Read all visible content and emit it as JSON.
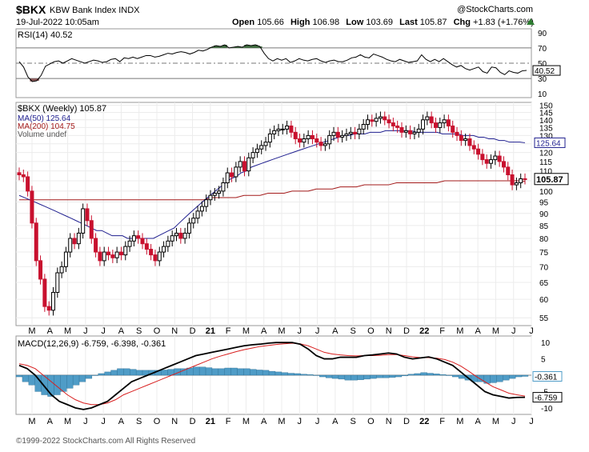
{
  "header": {
    "symbol": "$BKX",
    "name": "KBW Bank Index",
    "exchange": "INDX",
    "datetime": "19-Jul-2022 10:05am",
    "brand": "@StockCharts.com",
    "open_label": "Open",
    "open": "105.66",
    "high_label": "High",
    "high": "106.98",
    "low_label": "Low",
    "low": "103.69",
    "last_label": "Last",
    "last": "105.87",
    "chg_label": "Chg",
    "chg": "+1.83 (+1.76%)",
    "chg_color": "#2e7d32"
  },
  "footer": "©1999-2022 StockCharts.com All Rights Reserved",
  "x_axis_labels": [
    "M",
    "A",
    "M",
    "J",
    "J",
    "A",
    "S",
    "O",
    "N",
    "D",
    "21",
    "F",
    "M",
    "A",
    "M",
    "J",
    "J",
    "A",
    "S",
    "O",
    "N",
    "D",
    "22",
    "F",
    "M",
    "A",
    "M",
    "J",
    "J"
  ],
  "chart_data": [
    {
      "type": "line",
      "panel": "rsi",
      "legend": "RSI(14) 40.52",
      "ylim": [
        5,
        95
      ],
      "y_ticks": [
        10,
        30,
        50,
        70,
        90
      ],
      "reference_lines": [
        30,
        50,
        70
      ],
      "last_label": "40.52",
      "series": [
        {
          "values": [
            52,
            45,
            32,
            26,
            27,
            34,
            46,
            49,
            52,
            53,
            50,
            53,
            56,
            54,
            52,
            50,
            52,
            54,
            53,
            51,
            52,
            55,
            56,
            52,
            57,
            56,
            58,
            56,
            58,
            60,
            60,
            58,
            59,
            61,
            63,
            62,
            64,
            65,
            64,
            62,
            64,
            67,
            66,
            68,
            71,
            73,
            72,
            74,
            70,
            71,
            72,
            71,
            74,
            73,
            74,
            72,
            63,
            56,
            53,
            56,
            54,
            56,
            51,
            53,
            56,
            54,
            53,
            55,
            56,
            53,
            51,
            53,
            54,
            52,
            52,
            54,
            57,
            58,
            61,
            58,
            57,
            62,
            60,
            58,
            55,
            53,
            52,
            55,
            53,
            51,
            52,
            53,
            61,
            55,
            52,
            55,
            52,
            56,
            52,
            48,
            45,
            47,
            43,
            41,
            43,
            45,
            39,
            37,
            45,
            44,
            38,
            35,
            40,
            38,
            37,
            40,
            40.52
          ]
        }
      ],
      "colors": {
        "line": "#000000",
        "overbought_fill": "#3f6b3f",
        "oversold_fill": "#8b5a5a"
      }
    },
    {
      "type": "candlestick",
      "panel": "price",
      "legend": [
        "$BKX (Weekly) 105.87",
        "MA(50) 125.64",
        "MA(200) 104.75",
        "Volume undef"
      ],
      "scale": "log",
      "ylim": [
        53,
        152
      ],
      "y_ticks": [
        55,
        60,
        65,
        70,
        75,
        80,
        85,
        90,
        95,
        100,
        105,
        110,
        115,
        120,
        125,
        130,
        135,
        140,
        145,
        150
      ],
      "last_labels": {
        "ma50": "125.64",
        "price": "105.87"
      },
      "x_labels": [
        "M",
        "A",
        "M",
        "J",
        "J",
        "A",
        "S",
        "O",
        "N",
        "D",
        "21",
        "F",
        "M",
        "A",
        "M",
        "J",
        "J",
        "A",
        "S",
        "O",
        "N",
        "D",
        "22",
        "F",
        "M",
        "A",
        "M",
        "J",
        "J"
      ],
      "close": [
        108,
        107,
        100,
        86,
        72,
        66,
        58,
        57,
        62,
        68,
        70,
        75,
        80,
        78,
        82,
        92,
        87,
        80,
        75,
        72,
        75,
        74,
        73,
        75,
        74,
        77,
        79,
        81,
        80,
        78,
        76,
        74,
        72,
        75,
        77,
        79,
        81,
        82,
        80,
        82,
        86,
        88,
        91,
        93,
        96,
        98,
        99,
        100,
        104,
        109,
        107,
        112,
        115,
        110,
        117,
        120,
        122,
        124,
        126,
        131,
        133,
        134,
        134,
        136,
        132,
        128,
        126,
        128,
        130,
        128,
        126,
        124,
        125,
        130,
        132,
        129,
        130,
        131,
        132,
        131,
        134,
        137,
        140,
        139,
        141,
        142,
        140,
        138,
        136,
        135,
        132,
        133,
        131,
        132,
        134,
        140,
        142,
        138,
        135,
        138,
        140,
        136,
        132,
        130,
        127,
        128,
        124,
        122,
        119,
        116,
        114,
        116,
        118,
        115,
        112,
        108,
        103,
        104,
        106,
        105.87
      ],
      "ma50": [
        98,
        97,
        96,
        95,
        94,
        93,
        92,
        91,
        90,
        89,
        88,
        87,
        86,
        85,
        84,
        83,
        83,
        82,
        81,
        81,
        81,
        80,
        80,
        80,
        80,
        80,
        80,
        81,
        82,
        83,
        84,
        86,
        88,
        90,
        92,
        94,
        96,
        98,
        100,
        102,
        104,
        106,
        107,
        109,
        110,
        112,
        113,
        114,
        115,
        116,
        117,
        118,
        119,
        120,
        121,
        122,
        123,
        124,
        125,
        126,
        127,
        128,
        129,
        130,
        130,
        131,
        131,
        131,
        132,
        132,
        132,
        133,
        133,
        133,
        133,
        133,
        133,
        132,
        132,
        132,
        132,
        132,
        131,
        131,
        131,
        131,
        130,
        130,
        130,
        129,
        129,
        128,
        128,
        127,
        127,
        126,
        126,
        126,
        125.64
      ],
      "ma200": [
        96,
        96,
        96,
        96,
        96,
        96,
        96,
        96,
        96,
        96,
        96,
        96,
        96,
        96,
        96,
        96,
        96,
        96,
        96,
        96,
        96,
        96,
        96,
        96,
        97,
        97,
        97,
        97,
        98,
        98,
        98,
        99,
        99,
        99,
        100,
        100,
        100,
        101,
        101,
        101,
        102,
        102,
        102,
        103,
        103,
        103,
        103,
        104,
        104,
        104,
        104,
        104,
        104,
        105,
        105,
        105,
        105,
        105,
        105,
        105,
        105,
        105,
        105,
        104.75
      ],
      "colors": {
        "up": "#000000",
        "down": "#c8102e",
        "ma50": "#1f1f8f",
        "ma200": "#a31a1a"
      }
    },
    {
      "type": "bar",
      "panel": "macd",
      "legend": "MACD(12,26,9) -6.759, -6.398, -0.361",
      "ylim": [
        -12,
        12
      ],
      "y_ticks": [
        -10,
        -5,
        5,
        10
      ],
      "last_labels": {
        "hist": "-0.361",
        "macd": "-6.759"
      },
      "histogram": [
        -0.5,
        -2,
        -3,
        -5,
        -6,
        -6.5,
        -6,
        -5,
        -4,
        -3,
        -2,
        -1,
        0,
        0.5,
        1,
        1.5,
        2,
        2,
        1.8,
        1.5,
        1.5,
        1.5,
        1.5,
        1.6,
        1.8,
        2,
        2,
        2.2,
        2.5,
        2.5,
        2.3,
        2,
        2,
        2.2,
        2.2,
        2,
        2,
        1.8,
        1.6,
        1.5,
        1.2,
        1,
        0.8,
        0.6,
        0.5,
        0.3,
        0.2,
        0,
        -0.5,
        -0.8,
        -1,
        -1.2,
        -1.5,
        -1.5,
        -1.4,
        -1.2,
        -1,
        -0.8,
        -0.8,
        -0.7,
        -0.5,
        -0.2,
        0.3,
        0.5,
        0.8,
        0.6,
        0.4,
        0.2,
        0,
        -0.5,
        -1,
        -1.5,
        -2,
        -2,
        -2.5,
        -2.3,
        -2,
        -1.5,
        -1,
        -0.5,
        -0.361
      ],
      "macd": [
        3,
        2,
        0,
        -3,
        -6,
        -8,
        -9,
        -10,
        -10.5,
        -10,
        -9,
        -8,
        -6,
        -4,
        -2,
        -1,
        0,
        1,
        2,
        3,
        4,
        5,
        6,
        6.5,
        7,
        7.5,
        8,
        8.5,
        9,
        9.3,
        9.5,
        9.8,
        10,
        10,
        10,
        9.5,
        8,
        6,
        5,
        5,
        5.5,
        5.5,
        5.5,
        6,
        6.2,
        6.5,
        6.8,
        6.5,
        5.5,
        5,
        5.3,
        5.6,
        5,
        4,
        3,
        1,
        -1,
        -3,
        -5,
        -6,
        -6.5,
        -7,
        -6.8,
        -6.759
      ],
      "signal": [
        3.5,
        3,
        2,
        0,
        -2,
        -4,
        -6,
        -7.5,
        -8.5,
        -9,
        -9,
        -8.5,
        -7.5,
        -6,
        -5,
        -4,
        -3,
        -2,
        -1,
        0,
        1,
        2,
        3,
        4,
        5,
        5.8,
        6.5,
        7.2,
        7.8,
        8.3,
        8.8,
        9.1,
        9.4,
        9.6,
        9.8,
        9.6,
        9,
        8,
        7,
        6.5,
        6.2,
        6,
        5.9,
        6,
        6,
        6.1,
        6.3,
        6.3,
        6,
        5.6,
        5.4,
        5.4,
        5.2,
        4.8,
        4,
        2.8,
        1.2,
        -0.5,
        -2,
        -3.5,
        -4.5,
        -5.5,
        -6,
        -6.398
      ],
      "colors": {
        "hist": "#4f9cc7",
        "macd": "#000000",
        "signal": "#d81f1f"
      }
    }
  ]
}
